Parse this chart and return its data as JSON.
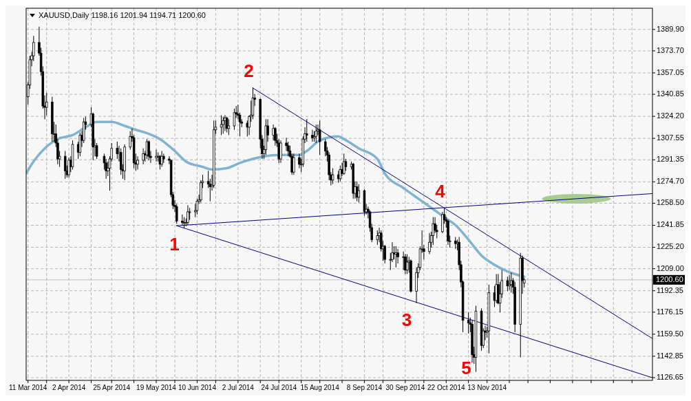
{
  "chart_data": {
    "type": "candlestick",
    "title": "XAUUSD,Daily 1198.16 1201.94 1194.71 1200.60",
    "x": [
      "2014-03-11",
      "2014-03-12",
      "2014-03-13",
      "2014-03-14",
      "2014-03-17",
      "2014-03-18",
      "2014-03-19",
      "2014-03-20",
      "2014-03-21",
      "2014-03-24",
      "2014-03-25",
      "2014-03-26",
      "2014-03-27",
      "2014-03-28",
      "2014-03-31",
      "2014-04-01",
      "2014-04-02",
      "2014-04-03",
      "2014-04-04",
      "2014-04-07",
      "2014-04-08",
      "2014-04-09",
      "2014-04-10",
      "2014-04-11",
      "2014-04-14",
      "2014-04-15",
      "2014-04-16",
      "2014-04-17",
      "2014-04-21",
      "2014-04-22",
      "2014-04-23",
      "2014-04-24",
      "2014-04-25",
      "2014-04-28",
      "2014-04-29",
      "2014-04-30",
      "2014-05-01",
      "2014-05-02",
      "2014-05-05",
      "2014-05-06",
      "2014-05-07",
      "2014-05-08",
      "2014-05-09",
      "2014-05-12",
      "2014-05-13",
      "2014-05-14",
      "2014-05-15",
      "2014-05-16",
      "2014-05-19",
      "2014-05-20",
      "2014-05-21",
      "2014-05-22",
      "2014-05-23",
      "2014-05-26",
      "2014-05-27",
      "2014-05-28",
      "2014-05-29",
      "2014-05-30",
      "2014-06-02",
      "2014-06-03",
      "2014-06-04",
      "2014-06-05",
      "2014-06-06",
      "2014-06-09",
      "2014-06-10",
      "2014-06-11",
      "2014-06-12",
      "2014-06-13",
      "2014-06-16",
      "2014-06-17",
      "2014-06-18",
      "2014-06-19",
      "2014-06-20",
      "2014-06-23",
      "2014-06-24",
      "2014-06-25",
      "2014-06-26",
      "2014-06-27",
      "2014-06-30",
      "2014-07-01",
      "2014-07-02",
      "2014-07-03",
      "2014-07-04",
      "2014-07-07",
      "2014-07-08",
      "2014-07-09",
      "2014-07-10",
      "2014-07-11",
      "2014-07-14",
      "2014-07-15",
      "2014-07-16",
      "2014-07-17",
      "2014-07-18",
      "2014-07-21",
      "2014-07-22",
      "2014-07-23",
      "2014-07-24",
      "2014-07-25",
      "2014-07-28",
      "2014-07-29",
      "2014-07-30",
      "2014-07-31",
      "2014-08-01",
      "2014-08-04",
      "2014-08-05",
      "2014-08-06",
      "2014-08-07",
      "2014-08-08",
      "2014-08-11",
      "2014-08-12",
      "2014-08-13",
      "2014-08-14",
      "2014-08-15",
      "2014-08-18",
      "2014-08-19",
      "2014-08-20",
      "2014-08-21",
      "2014-08-22",
      "2014-08-25",
      "2014-08-26",
      "2014-08-27",
      "2014-08-28",
      "2014-08-29",
      "2014-09-01",
      "2014-09-02",
      "2014-09-03",
      "2014-09-04",
      "2014-09-05",
      "2014-09-08",
      "2014-09-09",
      "2014-09-10",
      "2014-09-11",
      "2014-09-12",
      "2014-09-15",
      "2014-09-16",
      "2014-09-17",
      "2014-09-18",
      "2014-09-19",
      "2014-09-22",
      "2014-09-23",
      "2014-09-24",
      "2014-09-25",
      "2014-09-26",
      "2014-09-29",
      "2014-09-30",
      "2014-10-01",
      "2014-10-02",
      "2014-10-03",
      "2014-10-06",
      "2014-10-07",
      "2014-10-08",
      "2014-10-09",
      "2014-10-10",
      "2014-10-13",
      "2014-10-14",
      "2014-10-15",
      "2014-10-16",
      "2014-10-17",
      "2014-10-20",
      "2014-10-21",
      "2014-10-22",
      "2014-10-23",
      "2014-10-24",
      "2014-10-27",
      "2014-10-28",
      "2014-10-29",
      "2014-10-30",
      "2014-10-31",
      "2014-11-03",
      "2014-11-04",
      "2014-11-05",
      "2014-11-06",
      "2014-11-07",
      "2014-11-10",
      "2014-11-11",
      "2014-11-12",
      "2014-11-13",
      "2014-11-14",
      "2014-11-17",
      "2014-11-18",
      "2014-11-19",
      "2014-11-20",
      "2014-11-21",
      "2014-11-24",
      "2014-11-25",
      "2014-11-26",
      "2014-11-27",
      "2014-11-28",
      "2014-12-01",
      "2014-12-02",
      "2014-12-03"
    ],
    "ohlc": [
      [
        1339,
        1350,
        1333,
        1348
      ],
      [
        1348,
        1370,
        1345,
        1367
      ],
      [
        1367,
        1373,
        1362,
        1370
      ],
      [
        1370,
        1385,
        1366,
        1380
      ],
      [
        1380,
        1392,
        1370,
        1372
      ],
      [
        1372,
        1376,
        1355,
        1358
      ],
      [
        1358,
        1362,
        1330,
        1332
      ],
      [
        1332,
        1340,
        1322,
        1331
      ],
      [
        1331,
        1342,
        1325,
        1335
      ],
      [
        1335,
        1339,
        1305,
        1311
      ],
      [
        1311,
        1320,
        1305,
        1311
      ],
      [
        1311,
        1318,
        1301,
        1304
      ],
      [
        1304,
        1307,
        1288,
        1292
      ],
      [
        1292,
        1298,
        1286,
        1294
      ],
      [
        1294,
        1298,
        1277,
        1283
      ],
      [
        1283,
        1287,
        1278,
        1280
      ],
      [
        1280,
        1293,
        1278,
        1291
      ],
      [
        1291,
        1294,
        1282,
        1286
      ],
      [
        1286,
        1306,
        1284,
        1303
      ],
      [
        1303,
        1305,
        1292,
        1297
      ],
      [
        1297,
        1312,
        1294,
        1310
      ],
      [
        1310,
        1313,
        1301,
        1306
      ],
      [
        1306,
        1323,
        1304,
        1320
      ],
      [
        1320,
        1324,
        1314,
        1318
      ],
      [
        1318,
        1331,
        1316,
        1326
      ],
      [
        1326,
        1327,
        1291,
        1301
      ],
      [
        1301,
        1307,
        1294,
        1302
      ],
      [
        1302,
        1304,
        1292,
        1294
      ],
      [
        1294,
        1296,
        1284,
        1289
      ],
      [
        1289,
        1292,
        1277,
        1283
      ],
      [
        1283,
        1290,
        1279,
        1285
      ],
      [
        1285,
        1294,
        1268,
        1292
      ],
      [
        1292,
        1304,
        1290,
        1300
      ],
      [
        1300,
        1305,
        1292,
        1296
      ],
      [
        1296,
        1302,
        1290,
        1297
      ],
      [
        1297,
        1300,
        1280,
        1284
      ],
      [
        1284,
        1288,
        1277,
        1283
      ],
      [
        1283,
        1303,
        1276,
        1301
      ],
      [
        1301,
        1313,
        1299,
        1309
      ],
      [
        1309,
        1315,
        1305,
        1308
      ],
      [
        1308,
        1310,
        1285,
        1289
      ],
      [
        1289,
        1296,
        1283,
        1288
      ],
      [
        1288,
        1294,
        1284,
        1291
      ],
      [
        1291,
        1300,
        1288,
        1296
      ],
      [
        1296,
        1298,
        1290,
        1295
      ],
      [
        1295,
        1307,
        1292,
        1305
      ],
      [
        1305,
        1306,
        1291,
        1294
      ],
      [
        1294,
        1298,
        1289,
        1293
      ],
      [
        1293,
        1299,
        1290,
        1294
      ],
      [
        1294,
        1297,
        1290,
        1294
      ],
      [
        1294,
        1295,
        1284,
        1288
      ],
      [
        1288,
        1298,
        1286,
        1294
      ],
      [
        1294,
        1296,
        1289,
        1292
      ],
      [
        1292,
        1294,
        1288,
        1291
      ],
      [
        1291,
        1291,
        1263,
        1265
      ],
      [
        1265,
        1267,
        1254,
        1257
      ],
      [
        1257,
        1261,
        1252,
        1256
      ],
      [
        1256,
        1258,
        1243,
        1245
      ],
      [
        1245,
        1250,
        1242,
        1244
      ],
      [
        1244,
        1248,
        1240,
        1244
      ],
      [
        1244,
        1247,
        1241,
        1244
      ],
      [
        1244,
        1257,
        1242,
        1252
      ],
      [
        1252,
        1255,
        1246,
        1252
      ],
      [
        1252,
        1258,
        1248,
        1253
      ],
      [
        1253,
        1262,
        1250,
        1260
      ],
      [
        1260,
        1265,
        1258,
        1261
      ],
      [
        1261,
        1276,
        1259,
        1274
      ],
      [
        1274,
        1280,
        1270,
        1275
      ],
      [
        1275,
        1283,
        1270,
        1273
      ],
      [
        1273,
        1277,
        1260,
        1271
      ],
      [
        1271,
        1280,
        1268,
        1272
      ],
      [
        1272,
        1321,
        1270,
        1314
      ],
      [
        1314,
        1321,
        1311,
        1316
      ],
      [
        1316,
        1325,
        1310,
        1318
      ],
      [
        1318,
        1324,
        1311,
        1321
      ],
      [
        1321,
        1325,
        1313,
        1323
      ],
      [
        1323,
        1324,
        1312,
        1315
      ],
      [
        1315,
        1322,
        1310,
        1317
      ],
      [
        1317,
        1330,
        1314,
        1327
      ],
      [
        1327,
        1332,
        1323,
        1326
      ],
      [
        1326,
        1333,
        1322,
        1325
      ],
      [
        1325,
        1327,
        1309,
        1320
      ],
      [
        1320,
        1322,
        1316,
        1319
      ],
      [
        1319,
        1321,
        1309,
        1316
      ],
      [
        1316,
        1325,
        1310,
        1324
      ],
      [
        1324,
        1336,
        1320,
        1325
      ],
      [
        1325,
        1346,
        1322,
        1338
      ],
      [
        1338,
        1341,
        1332,
        1337
      ],
      [
        1337,
        1338,
        1300,
        1307
      ],
      [
        1307,
        1310,
        1292,
        1296
      ],
      [
        1296,
        1302,
        1292,
        1299
      ],
      [
        1299,
        1322,
        1295,
        1317
      ],
      [
        1317,
        1322,
        1305,
        1310
      ],
      [
        1310,
        1318,
        1306,
        1315
      ],
      [
        1315,
        1316,
        1302,
        1306
      ],
      [
        1306,
        1311,
        1301,
        1304
      ],
      [
        1304,
        1307,
        1289,
        1292
      ],
      [
        1292,
        1306,
        1289,
        1304
      ],
      [
        1304,
        1308,
        1298,
        1302
      ],
      [
        1302,
        1305,
        1294,
        1298
      ],
      [
        1298,
        1302,
        1293,
        1294
      ],
      [
        1294,
        1296,
        1280,
        1282
      ],
      [
        1282,
        1296,
        1280,
        1293
      ],
      [
        1293,
        1296,
        1285,
        1288
      ],
      [
        1288,
        1292,
        1282,
        1288
      ],
      [
        1288,
        1309,
        1286,
        1307
      ],
      [
        1307,
        1316,
        1304,
        1311
      ],
      [
        1311,
        1322,
        1305,
        1310
      ],
      [
        1310,
        1314,
        1305,
        1308
      ],
      [
        1308,
        1313,
        1305,
        1309
      ],
      [
        1309,
        1318,
        1304,
        1313
      ],
      [
        1313,
        1318,
        1310,
        1314
      ],
      [
        1314,
        1321,
        1295,
        1305
      ],
      [
        1305,
        1307,
        1294,
        1298
      ],
      [
        1298,
        1301,
        1290,
        1295
      ],
      [
        1295,
        1297,
        1276,
        1280
      ],
      [
        1280,
        1282,
        1272,
        1276
      ],
      [
        1276,
        1285,
        1273,
        1280
      ],
      [
        1280,
        1283,
        1274,
        1277
      ],
      [
        1277,
        1287,
        1275,
        1284
      ],
      [
        1284,
        1289,
        1279,
        1281
      ],
      [
        1281,
        1296,
        1280,
        1290
      ],
      [
        1290,
        1292,
        1283,
        1286
      ],
      [
        1286,
        1290,
        1284,
        1288
      ],
      [
        1288,
        1289,
        1262,
        1266
      ],
      [
        1266,
        1275,
        1262,
        1271
      ],
      [
        1271,
        1275,
        1260,
        1263
      ],
      [
        1263,
        1273,
        1259,
        1268
      ],
      [
        1268,
        1269,
        1249,
        1252
      ],
      [
        1252,
        1258,
        1250,
        1254
      ],
      [
        1254,
        1256,
        1247,
        1252
      ],
      [
        1252,
        1253,
        1237,
        1240
      ],
      [
        1240,
        1243,
        1229,
        1231
      ],
      [
        1231,
        1238,
        1227,
        1234
      ],
      [
        1234,
        1240,
        1229,
        1236
      ],
      [
        1236,
        1238,
        1222,
        1224
      ],
      [
        1224,
        1230,
        1215,
        1226
      ],
      [
        1226,
        1227,
        1213,
        1216
      ],
      [
        1216,
        1221,
        1208,
        1216
      ],
      [
        1216,
        1229,
        1214,
        1221
      ],
      [
        1221,
        1226,
        1216,
        1220
      ],
      [
        1220,
        1226,
        1210,
        1221
      ],
      [
        1221,
        1224,
        1213,
        1218
      ],
      [
        1218,
        1222,
        1208,
        1218
      ],
      [
        1218,
        1220,
        1205,
        1208
      ],
      [
        1208,
        1220,
        1205,
        1214
      ],
      [
        1214,
        1218,
        1206,
        1215
      ],
      [
        1215,
        1216,
        1191,
        1192
      ],
      [
        1192,
        1210,
        1183,
        1206
      ],
      [
        1206,
        1213,
        1202,
        1210
      ],
      [
        1210,
        1226,
        1208,
        1224
      ],
      [
        1224,
        1238,
        1221,
        1224
      ],
      [
        1224,
        1227,
        1216,
        1222
      ],
      [
        1222,
        1236,
        1220,
        1229
      ],
      [
        1229,
        1237,
        1225,
        1234
      ],
      [
        1234,
        1248,
        1227,
        1243
      ],
      [
        1243,
        1248,
        1236,
        1238
      ],
      [
        1238,
        1242,
        1232,
        1237
      ],
      [
        1237,
        1252,
        1236,
        1250
      ],
      [
        1250,
        1255,
        1243,
        1246
      ],
      [
        1246,
        1248,
        1240,
        1245
      ],
      [
        1245,
        1246,
        1227,
        1230
      ],
      [
        1230,
        1234,
        1225,
        1230
      ],
      [
        1230,
        1233,
        1224,
        1228
      ],
      [
        1228,
        1231,
        1223,
        1229
      ],
      [
        1229,
        1233,
        1208,
        1212
      ],
      [
        1212,
        1215,
        1195,
        1199
      ],
      [
        1199,
        1200,
        1161,
        1170
      ],
      [
        1170,
        1176,
        1160,
        1168
      ],
      [
        1168,
        1172,
        1161,
        1167
      ],
      [
        1167,
        1170,
        1138,
        1144
      ],
      [
        1144,
        1150,
        1137,
        1142
      ],
      [
        1142,
        1181,
        1131,
        1177
      ],
      [
        1177,
        1179,
        1147,
        1151
      ],
      [
        1151,
        1164,
        1149,
        1162
      ],
      [
        1162,
        1166,
        1155,
        1161
      ],
      [
        1161,
        1165,
        1157,
        1162
      ],
      [
        1162,
        1197,
        1145,
        1191
      ],
      [
        1191,
        1196,
        1180,
        1185
      ],
      [
        1185,
        1205,
        1183,
        1197
      ],
      [
        1197,
        1205,
        1182,
        1183
      ],
      [
        1183,
        1199,
        1176,
        1190
      ],
      [
        1190,
        1208,
        1187,
        1200
      ],
      [
        1200,
        1203,
        1192,
        1196
      ],
      [
        1196,
        1204,
        1193,
        1197
      ],
      [
        1197,
        1206,
        1191,
        1200
      ],
      [
        1200,
        1202,
        1190,
        1195
      ],
      [
        1195,
        1199,
        1161,
        1167
      ],
      [
        1167,
        1221,
        1142,
        1217
      ],
      [
        1217,
        1219,
        1190,
        1200
      ],
      [
        1198.16,
        1201.94,
        1194.71,
        1200.6
      ]
    ],
    "series": [
      {
        "type": "line",
        "color": "#7fb3cf",
        "x": [
          "2014-03-10",
          "2014-03-13",
          "2014-03-20",
          "2014-03-27",
          "2014-04-04",
          "2014-04-11",
          "2014-04-17",
          "2014-04-25",
          "2014-05-02",
          "2014-05-08",
          "2014-05-13",
          "2014-05-21",
          "2014-05-29",
          "2014-06-04",
          "2014-06-13",
          "2014-06-18",
          "2014-06-26",
          "2014-07-03",
          "2014-07-10",
          "2014-07-16",
          "2014-07-25",
          "2014-08-04",
          "2014-08-08",
          "2014-08-15",
          "2014-08-25",
          "2014-08-28",
          "2014-09-05",
          "2014-09-15",
          "2014-09-19",
          "2014-09-29",
          "2014-10-08",
          "2014-10-14",
          "2014-10-22",
          "2014-10-27",
          "2014-11-03",
          "2014-11-10",
          "2014-11-17",
          "2014-11-24",
          "2014-12-03"
        ],
        "values": [
          1281,
          1288,
          1300,
          1307,
          1310,
          1316,
          1320,
          1320,
          1317,
          1314,
          1312,
          1307,
          1298,
          1290,
          1286,
          1284,
          1285,
          1289,
          1292,
          1294,
          1295,
          1295,
          1298,
          1306,
          1309,
          1307,
          1300,
          1292,
          1281,
          1270,
          1261,
          1255,
          1247,
          1242,
          1231,
          1219,
          1212,
          1207,
          1203
        ]
      },
      {
        "type": "line",
        "color": "#000080",
        "x": [
          "2014-05-30",
          "2015-02-10"
        ],
        "values": [
          1241.5,
          1265.8
        ]
      },
      {
        "type": "line",
        "color": "#000080",
        "x": [
          "2014-05-30",
          "2015-02-10"
        ],
        "values": [
          1241.5,
          1126.6
        ]
      },
      {
        "type": "line",
        "color": "#000080",
        "x": [
          "2014-07-10",
          "2015-02-10"
        ],
        "values": [
          1345.6,
          1156.2
        ]
      }
    ],
    "xlim": [
      "2014-03-10",
      "2015-02-10"
    ],
    "ylim": [
      1124.6,
      1405.9
    ],
    "xticks": [
      {
        "value": "2014-03-11",
        "label": "11 Mar 2014"
      },
      {
        "value": "2014-03-21",
        "label": null
      },
      {
        "value": "2014-04-02",
        "label": "2 Apr 2014"
      },
      {
        "value": "2014-04-14",
        "label": null
      },
      {
        "value": "2014-04-25",
        "label": "25 Apr 2014"
      },
      {
        "value": "2014-05-07",
        "label": null
      },
      {
        "value": "2014-05-19",
        "label": "19 May 2014"
      },
      {
        "value": "2014-05-29",
        "label": null
      },
      {
        "value": "2014-06-10",
        "label": "10 Jun 2014"
      },
      {
        "value": "2014-06-20",
        "label": null
      },
      {
        "value": "2014-07-02",
        "label": "2 Jul 2014"
      },
      {
        "value": "2014-07-14",
        "label": null
      },
      {
        "value": "2014-07-24",
        "label": "24 Jul 2014"
      },
      {
        "value": "2014-08-05",
        "label": null
      },
      {
        "value": "2014-08-15",
        "label": "15 Aug 2014"
      },
      {
        "value": "2014-08-27",
        "label": null
      },
      {
        "value": "2014-09-08",
        "label": "8 Sep 2014"
      },
      {
        "value": "2014-09-18",
        "label": null
      },
      {
        "value": "2014-09-30",
        "label": "30 Sep 2014"
      },
      {
        "value": "2014-10-10",
        "label": null
      },
      {
        "value": "2014-10-22",
        "label": "22 Oct 2014"
      },
      {
        "value": "2014-11-03",
        "label": null
      },
      {
        "value": "2014-11-13",
        "label": "13 Nov 2014"
      },
      {
        "value": "2014-11-25",
        "label": null
      },
      {
        "value": "2014-12-05",
        "label": null
      },
      {
        "value": "2014-12-17",
        "label": null
      },
      {
        "value": "2014-12-29",
        "label": null
      },
      {
        "value": "2015-01-08",
        "label": null
      },
      {
        "value": "2015-01-20",
        "label": null
      },
      {
        "value": "2015-01-30",
        "label": null
      }
    ],
    "yticks": [
      {
        "value": 1389.9,
        "label": "1389.90"
      },
      {
        "value": 1373.7,
        "label": "1373.70"
      },
      {
        "value": 1357.05,
        "label": "1357.05"
      },
      {
        "value": 1340.85,
        "label": "1340.85"
      },
      {
        "value": 1324.2,
        "label": "1324.20"
      },
      {
        "value": 1307.55,
        "label": "1307.55"
      },
      {
        "value": 1291.35,
        "label": "1291.35"
      },
      {
        "value": 1274.7,
        "label": "1274.70"
      },
      {
        "value": 1258.5,
        "label": "1258.50"
      },
      {
        "value": 1241.85,
        "label": "1241.85"
      },
      {
        "value": 1225.2,
        "label": "1225.20"
      },
      {
        "value": 1209,
        "label": "1209.00"
      },
      {
        "value": 1192.35,
        "label": "1192.35"
      },
      {
        "value": 1176.15,
        "label": "1176.15"
      },
      {
        "value": 1159.5,
        "label": "1159.50"
      },
      {
        "value": 1142.85,
        "label": "1142.85"
      },
      {
        "value": 1126.65,
        "label": "1126.65"
      }
    ],
    "grid": true,
    "ref_lines": [
      {
        "axis": "y",
        "value": 1200.6,
        "label": "1200.60",
        "color": "#c0c0c0"
      }
    ],
    "annotations": [
      {
        "text": "1",
        "x": "2014-06-03",
        "y": 1240
      },
      {
        "text": "2",
        "x": "2014-07-10",
        "y": 1346
      },
      {
        "text": "3",
        "x": "2014-10-06",
        "y": 1183
      },
      {
        "text": "4",
        "x": "2014-10-21",
        "y": 1255
      },
      {
        "text": "5",
        "x": "2014-11-07",
        "y": 1131
      }
    ]
  }
}
